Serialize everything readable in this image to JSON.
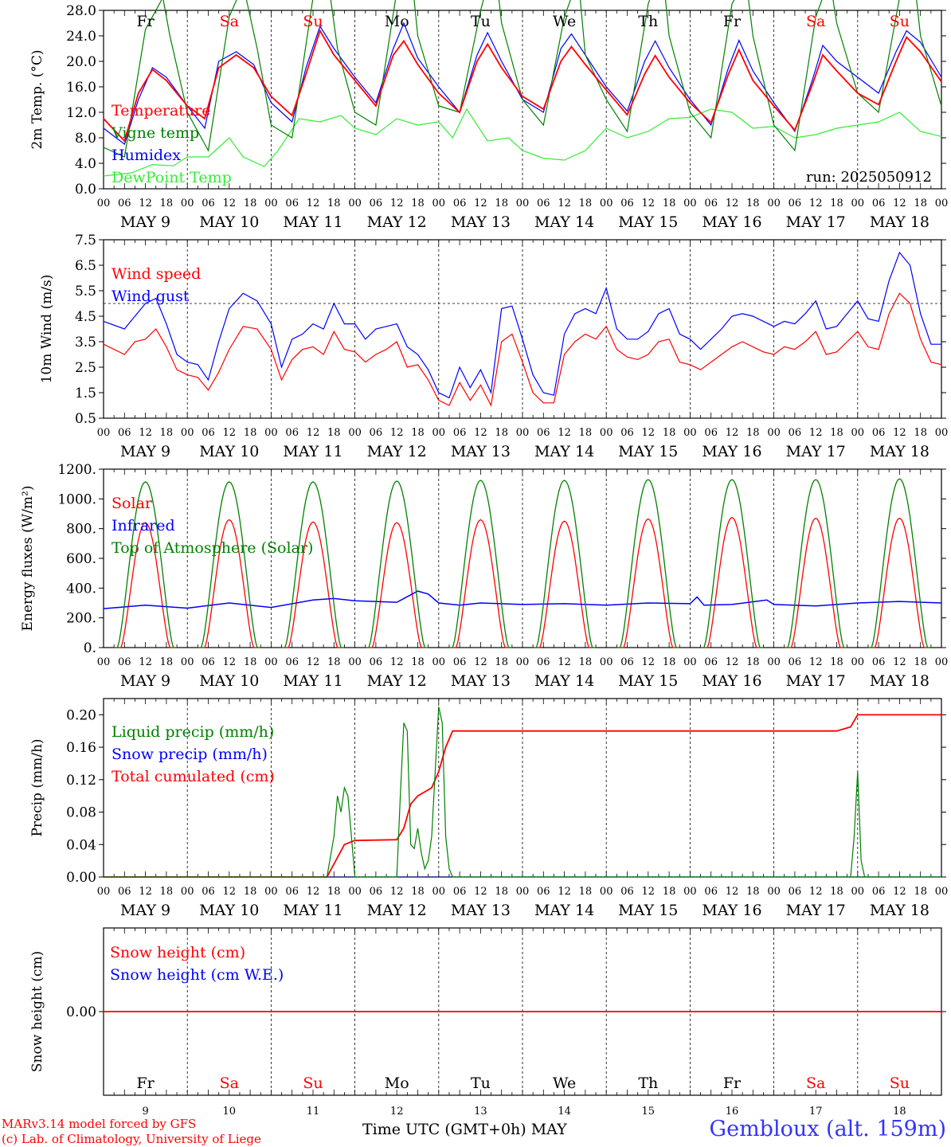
{
  "colors": {
    "red": "#ff0000",
    "blue": "#0000ff",
    "dark_green": "#008000",
    "light_green": "#33ee33",
    "weekend": "#ff0000",
    "weekday": "#000000",
    "station": "#3333ff"
  },
  "weekdays": [
    {
      "label": "Fr",
      "weekend": false
    },
    {
      "label": "Sa",
      "weekend": true
    },
    {
      "label": "Su",
      "weekend": true
    },
    {
      "label": "Mo",
      "weekend": false
    },
    {
      "label": "Tu",
      "weekend": false
    },
    {
      "label": "We",
      "weekend": false
    },
    {
      "label": "Th",
      "weekend": false
    },
    {
      "label": "Fr",
      "weekend": false
    },
    {
      "label": "Sa",
      "weekend": true
    },
    {
      "label": "Su",
      "weekend": true
    }
  ],
  "hour_ticks": [
    "00",
    "06",
    "12",
    "18"
  ],
  "day_labels": [
    "MAY  9",
    "MAY 10",
    "MAY 11",
    "MAY 12",
    "MAY 13",
    "MAY 14",
    "MAY 15",
    "MAY 16",
    "MAY 17",
    "MAY 18"
  ],
  "day_numbers": [
    "9",
    "10",
    "11",
    "12",
    "13",
    "14",
    "15",
    "16",
    "17",
    "18"
  ],
  "footer": {
    "credit_line1": "MARv3.14 model forced by GFS",
    "credit_line2": "(c) Lab. of Climatology, University of Liege",
    "xaxis_title": "Time UTC (GMT+0h) MAY",
    "station": "Gembloux (alt. 159m)"
  },
  "chart_data": [
    {
      "type": "line",
      "ylabel": "2m Temp. (°C)",
      "ylim": [
        0,
        28
      ],
      "yticks": [
        "0.0",
        "4.0",
        "8.0",
        "12.0",
        "16.0",
        "20.0",
        "24.0",
        "28.0"
      ],
      "annotation": "run: 2025050912",
      "x_unit": "hours since 9 May 00 UTC",
      "series": [
        {
          "name": "Temperature",
          "color": "#ff0000",
          "x": [
            0,
            6,
            10,
            14,
            18,
            24,
            29,
            33,
            38,
            43,
            48,
            54,
            58,
            62,
            66,
            72,
            78,
            83,
            86,
            90,
            96,
            102,
            107,
            110,
            114,
            120,
            126,
            131,
            134,
            138,
            144,
            150,
            155,
            158,
            162,
            168,
            174,
            179,
            182,
            186,
            192,
            198,
            203,
            206,
            210,
            216,
            222,
            227,
            230,
            234,
            240
          ],
          "y": [
            11,
            7.5,
            15,
            18.7,
            17,
            13,
            11,
            19,
            21,
            19,
            14.5,
            11.5,
            18,
            24.8,
            21,
            17,
            13,
            21,
            23.2,
            19.5,
            15,
            12,
            20,
            22.7,
            19,
            14.5,
            12.5,
            20,
            22.3,
            19.5,
            15.5,
            11.6,
            18,
            20.9,
            17.5,
            13.5,
            10.4,
            18,
            21.8,
            17,
            13,
            9.2,
            16.3,
            21,
            18.5,
            15,
            13.2,
            20,
            23.8,
            21.5,
            16.8
          ]
        },
        {
          "name": "Vigne temp",
          "color": "#008000",
          "x": [
            0,
            6,
            12,
            17,
            19,
            24,
            30,
            36,
            40,
            44,
            48,
            54,
            60,
            64,
            67,
            72,
            78,
            84,
            88,
            90,
            96,
            102,
            108,
            112,
            114,
            120,
            126,
            132,
            136,
            138,
            144,
            150,
            156,
            160,
            162,
            168,
            174,
            180,
            184,
            186,
            192,
            198,
            204,
            208,
            210,
            216,
            222,
            228,
            232,
            234,
            240
          ],
          "y": [
            6.5,
            5,
            25,
            30,
            24,
            12,
            6,
            27,
            32,
            22,
            10,
            8,
            30,
            34,
            22,
            12,
            10,
            31,
            35,
            24,
            13,
            12,
            28,
            36,
            26,
            14,
            10,
            27,
            33,
            21,
            14,
            9,
            29,
            35,
            24,
            12,
            8,
            29,
            33,
            24,
            10,
            6,
            27,
            33,
            26,
            15,
            12,
            30,
            34,
            24,
            13
          ]
        },
        {
          "name": "Humidex",
          "color": "#0000ff",
          "x": [
            0,
            6,
            10,
            14,
            18,
            24,
            29,
            33,
            38,
            43,
            48,
            54,
            58,
            62,
            66,
            72,
            78,
            83,
            86,
            90,
            96,
            102,
            107,
            110,
            114,
            120,
            126,
            131,
            134,
            138,
            144,
            150,
            155,
            158,
            162,
            168,
            174,
            179,
            182,
            186,
            192,
            198,
            203,
            206,
            210,
            216,
            222,
            227,
            230,
            234,
            240
          ],
          "y": [
            9.5,
            7,
            14,
            19,
            17.5,
            13,
            9.5,
            20,
            21.5,
            19.5,
            13.5,
            10.5,
            19,
            25.5,
            22,
            17.5,
            13.5,
            22,
            26,
            20.5,
            16,
            12,
            21,
            24.5,
            20,
            14,
            12,
            22,
            24.3,
            21,
            16,
            12.2,
            20,
            23.2,
            19,
            14,
            10,
            19,
            23.3,
            18.5,
            13.5,
            9,
            17,
            22.5,
            20,
            17.5,
            15,
            21.5,
            24.8,
            23,
            17.5
          ]
        },
        {
          "name": "DewPoint Temp",
          "color": "#33ee33",
          "x": [
            0,
            8,
            14,
            20,
            24,
            30,
            36,
            40,
            46,
            50,
            56,
            62,
            68,
            72,
            78,
            84,
            90,
            96,
            100,
            104,
            110,
            116,
            120,
            126,
            132,
            138,
            144,
            150,
            156,
            162,
            168,
            174,
            180,
            186,
            192,
            198,
            204,
            210,
            216,
            222,
            228,
            234,
            240
          ],
          "y": [
            2,
            2.5,
            3.8,
            3.6,
            5,
            5,
            8,
            5,
            3.5,
            6,
            11,
            10.5,
            11.5,
            9.5,
            8.5,
            11,
            10,
            10.5,
            8,
            12.5,
            7.5,
            8,
            6,
            4.8,
            4.5,
            6,
            9.5,
            8,
            9,
            11,
            11.2,
            12.5,
            12,
            9.5,
            9.8,
            8,
            8.5,
            9.5,
            10,
            10.5,
            12,
            9,
            8.2
          ]
        }
      ]
    },
    {
      "type": "line",
      "ylabel": "10m Wind (m/s)",
      "ylim": [
        0.5,
        7.5
      ],
      "yticks": [
        "0.5",
        "1.5",
        "2.5",
        "3.5",
        "4.5",
        "5.5",
        "6.5",
        "7.5"
      ],
      "reference_line": 5,
      "x_unit": "hours since 9 May 00 UTC",
      "series": [
        {
          "name": "Wind speed",
          "color": "#ff0000",
          "x": [
            0,
            6,
            9,
            12,
            15,
            18,
            21,
            24,
            27,
            30,
            33,
            36,
            40,
            44,
            48,
            51,
            54,
            57,
            60,
            63,
            66,
            69,
            72,
            75,
            78,
            81,
            84,
            87,
            90,
            93,
            96,
            99,
            102,
            105,
            108,
            111,
            114,
            117,
            120,
            123,
            126,
            129,
            132,
            135,
            138,
            141,
            144,
            147,
            150,
            153,
            156,
            159,
            162,
            165,
            168,
            171,
            174,
            177,
            180,
            183,
            186,
            189,
            192,
            195,
            198,
            201,
            204,
            207,
            210,
            213,
            216,
            219,
            222,
            225,
            228,
            231,
            234,
            237,
            240
          ],
          "y": [
            3.4,
            3.0,
            3.5,
            3.6,
            4.0,
            3.3,
            2.4,
            2.2,
            2.1,
            1.6,
            2.3,
            3.2,
            4.1,
            4.0,
            3.2,
            2.0,
            2.8,
            3.2,
            3.3,
            3.0,
            3.9,
            3.2,
            3.1,
            2.7,
            3.0,
            3.2,
            3.5,
            2.5,
            2.6,
            2.0,
            1.2,
            1.0,
            1.9,
            1.2,
            1.8,
            1.0,
            3.5,
            3.8,
            2.7,
            1.5,
            1.1,
            1.1,
            3.0,
            3.5,
            3.8,
            3.6,
            4.1,
            3.2,
            2.9,
            2.8,
            3.0,
            3.5,
            3.6,
            2.7,
            2.6,
            2.4,
            2.7,
            3.0,
            3.3,
            3.5,
            3.3,
            3.1,
            3.0,
            3.3,
            3.2,
            3.5,
            3.9,
            3.0,
            3.1,
            3.5,
            3.9,
            3.3,
            3.2,
            4.6,
            5.4,
            5.0,
            3.6,
            2.7,
            2.6
          ]
        },
        {
          "name": "Wind gust",
          "color": "#0000ff",
          "x": [
            0,
            6,
            9,
            12,
            15,
            18,
            21,
            24,
            27,
            30,
            33,
            36,
            40,
            44,
            48,
            51,
            54,
            57,
            60,
            63,
            66,
            69,
            72,
            75,
            78,
            81,
            84,
            87,
            90,
            93,
            96,
            99,
            102,
            105,
            108,
            111,
            114,
            117,
            120,
            123,
            126,
            129,
            132,
            135,
            138,
            141,
            144,
            147,
            150,
            153,
            156,
            159,
            162,
            165,
            168,
            171,
            174,
            177,
            180,
            183,
            186,
            189,
            192,
            195,
            198,
            201,
            204,
            207,
            210,
            213,
            216,
            219,
            222,
            225,
            228,
            231,
            234,
            237,
            240
          ],
          "y": [
            4.3,
            4.0,
            4.5,
            5.0,
            5.2,
            4.2,
            3.0,
            2.7,
            2.6,
            2.0,
            3.5,
            4.8,
            5.4,
            5.1,
            4.2,
            2.5,
            3.6,
            3.8,
            4.2,
            4.0,
            5.0,
            4.2,
            4.2,
            3.6,
            4.0,
            4.1,
            4.2,
            3.3,
            3.0,
            2.4,
            1.5,
            1.3,
            2.5,
            1.7,
            2.4,
            1.5,
            4.8,
            4.9,
            3.6,
            2.2,
            1.5,
            1.4,
            3.8,
            4.6,
            4.8,
            4.6,
            5.6,
            4.0,
            3.6,
            3.6,
            3.9,
            4.6,
            4.8,
            3.8,
            3.6,
            3.2,
            3.6,
            4.0,
            4.5,
            4.6,
            4.5,
            4.3,
            4.1,
            4.3,
            4.2,
            4.6,
            5.1,
            4.0,
            4.1,
            4.6,
            5.1,
            4.4,
            4.3,
            5.9,
            7.0,
            6.5,
            4.6,
            3.4,
            3.4
          ]
        }
      ]
    },
    {
      "type": "line",
      "ylabel": "Energy fluxes (W/m²)",
      "ylim": [
        0,
        1200
      ],
      "yticks": [
        "0.",
        "200.",
        "400.",
        "600.",
        "800.",
        "1000.",
        "1200."
      ],
      "x_unit": "hours since 9 May 00 UTC",
      "daily_peak_hour": 12,
      "series": [
        {
          "name": "Solar",
          "color": "#ff0000",
          "daily_peaks": [
            840,
            860,
            845,
            840,
            860,
            850,
            865,
            875,
            870,
            870
          ]
        },
        {
          "name": "Infrared",
          "color": "#0000ff",
          "x": [
            0,
            12,
            24,
            36,
            48,
            60,
            66,
            72,
            84,
            90,
            93,
            96,
            102,
            108,
            120,
            132,
            144,
            156,
            168,
            170,
            172,
            180,
            190,
            192,
            204,
            216,
            228,
            240
          ],
          "y": [
            262,
            285,
            265,
            300,
            270,
            320,
            330,
            315,
            305,
            380,
            360,
            300,
            285,
            300,
            290,
            295,
            285,
            300,
            295,
            340,
            285,
            290,
            320,
            290,
            280,
            300,
            310,
            300
          ]
        },
        {
          "name": "Top of Atmosphere (Solar)",
          "color": "#008000",
          "daily_peaks": [
            1115,
            1115,
            1115,
            1120,
            1125,
            1125,
            1130,
            1130,
            1130,
            1135
          ]
        }
      ]
    },
    {
      "type": "line",
      "ylabel": "Precip (mm/h)",
      "ylim": [
        0,
        0.22
      ],
      "yticks": [
        "0.00",
        "0.04",
        "0.08",
        "0.12",
        "0.16",
        "0.20"
      ],
      "x_unit": "hours since 9 May 00 UTC",
      "series": [
        {
          "name": "Liquid precip (mm/h)",
          "color": "#008000",
          "x": [
            0,
            64,
            66,
            67,
            68,
            69,
            70,
            72,
            84,
            85,
            86,
            87,
            88,
            89,
            90,
            91,
            92,
            93,
            94,
            96,
            97,
            98,
            99,
            100,
            240
          ],
          "y": [
            0,
            0,
            0.05,
            0.1,
            0.08,
            0.11,
            0.1,
            0,
            0,
            0.1,
            0.19,
            0.18,
            0.04,
            0.035,
            0.06,
            0.03,
            0.01,
            0.02,
            0.05,
            0.21,
            0.19,
            0.05,
            0.01,
            0,
            0
          ],
          "extra": {
            "x": [
              214,
              215,
              216,
              217,
              218
            ],
            "y": [
              0,
              0.05,
              0.13,
              0.02,
              0
            ]
          }
        },
        {
          "name": "Snow precip (mm/h)",
          "color": "#0000ff",
          "x": [
            0,
            240
          ],
          "y": [
            0,
            0
          ]
        },
        {
          "name": "Total cumulated (cm)",
          "color": "#ff0000",
          "x": [
            0,
            64,
            69,
            72,
            84,
            86,
            88,
            90,
            92,
            94,
            96,
            98,
            100,
            210,
            214,
            216,
            240
          ],
          "y": [
            0,
            0,
            0.04,
            0.045,
            0.046,
            0.06,
            0.09,
            0.1,
            0.105,
            0.11,
            0.13,
            0.16,
            0.18,
            0.18,
            0.185,
            0.2,
            0.2
          ]
        }
      ]
    },
    {
      "type": "line",
      "ylabel": "Snow height (cm)",
      "yticks": [
        "0.00"
      ],
      "x_unit": "hours since 9 May 00 UTC",
      "series": [
        {
          "name": "Snow height (cm)",
          "color": "#ff0000",
          "x": [
            0,
            240
          ],
          "y": [
            0,
            0
          ]
        },
        {
          "name": "Snow height (cm W.E.)",
          "color": "#0000ff",
          "x": [
            0,
            240
          ],
          "y": [
            0,
            0
          ]
        }
      ]
    }
  ]
}
